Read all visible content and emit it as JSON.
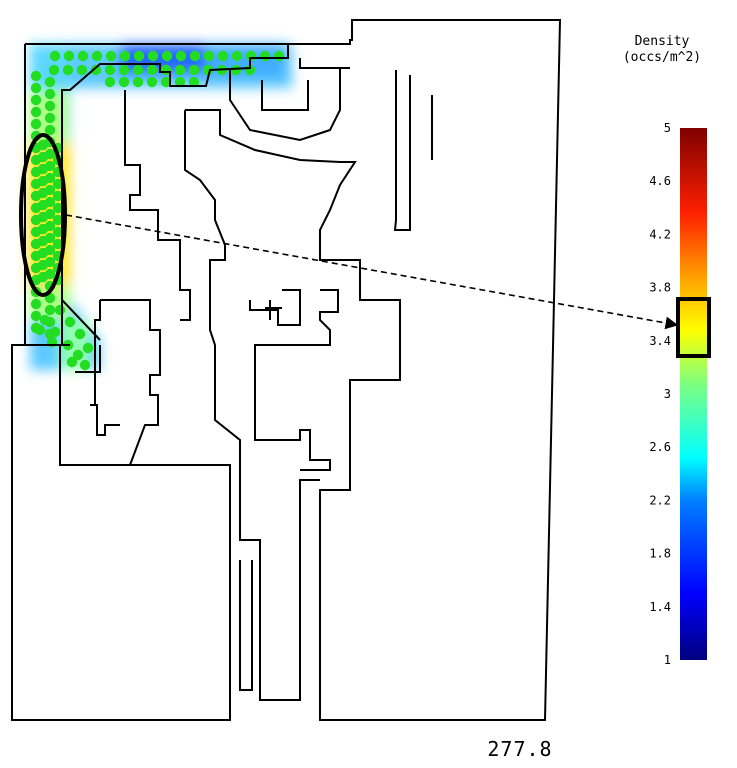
{
  "legend": {
    "title_line1": "Density",
    "title_line2": "(occs/m^2)",
    "min": 1,
    "max": 5,
    "ticks": [
      "5",
      "4.6",
      "4.2",
      "3.8",
      "3.4",
      "3",
      "2.6",
      "2.2",
      "1.8",
      "1.4",
      "1"
    ],
    "highlight_range": [
      3.25,
      3.55
    ]
  },
  "timer": {
    "value": "277.8"
  },
  "colors": {
    "occupant": "#22dd22",
    "wall": "#000000",
    "marker": "#000000",
    "scale_stops": [
      "#00007f",
      "#0000ff",
      "#007fff",
      "#00ffff",
      "#7fff7f",
      "#ffff00",
      "#ff7f00",
      "#ff0000",
      "#7f0000"
    ]
  },
  "highlight": {
    "region": "west corridor",
    "density_indicator": "3.4"
  }
}
